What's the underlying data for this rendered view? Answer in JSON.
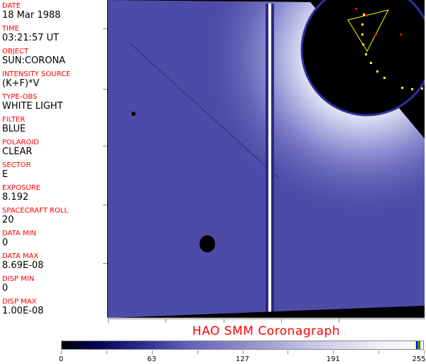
{
  "info_panel": [
    {
      "label": "DATE",
      "value": "18 Mar 1988"
    },
    {
      "label": "TIME",
      "value": "03:21:57 UT"
    },
    {
      "label": "OBJECT",
      "value": "SUN:CORONA"
    },
    {
      "label": "INTENSITY SOURCE",
      "value": "(K+F)*V"
    },
    {
      "label": "TYPE-OBS",
      "value": "WHITE LIGHT"
    },
    {
      "label": "FILTER",
      "value": "BLUE"
    },
    {
      "label": "POLAROID",
      "value": "CLEAR"
    },
    {
      "label": "SECTOR",
      "value": "E"
    },
    {
      "label": "EXPOSURE",
      "value": "8.192"
    },
    {
      "label": "SPACECRAFT ROLL",
      "value": "20"
    },
    {
      "label": "DATA MIN",
      "value": "0"
    },
    {
      "label": "DATA MAX",
      "value": "8.69E-08"
    },
    {
      "label": "DISP MIN",
      "value": "0"
    },
    {
      "label": "DISP MAX",
      "value": "1.00E-08"
    }
  ],
  "title": "HAO  SMM Coronagraph",
  "colorbar": {
    "ticks": [
      "0",
      "63",
      "127",
      "191",
      "255"
    ],
    "colors": {
      "low": "#000000",
      "mid": "#6060b8",
      "high": "#fafafa"
    },
    "overlay_colors": [
      "#ffff00",
      "#0000ff",
      "#00c000",
      "#ff0000"
    ]
  },
  "colors": {
    "label": "#ff0000",
    "overlay_grid": "#ff0000",
    "overlay_limb": "#ffff00"
  }
}
